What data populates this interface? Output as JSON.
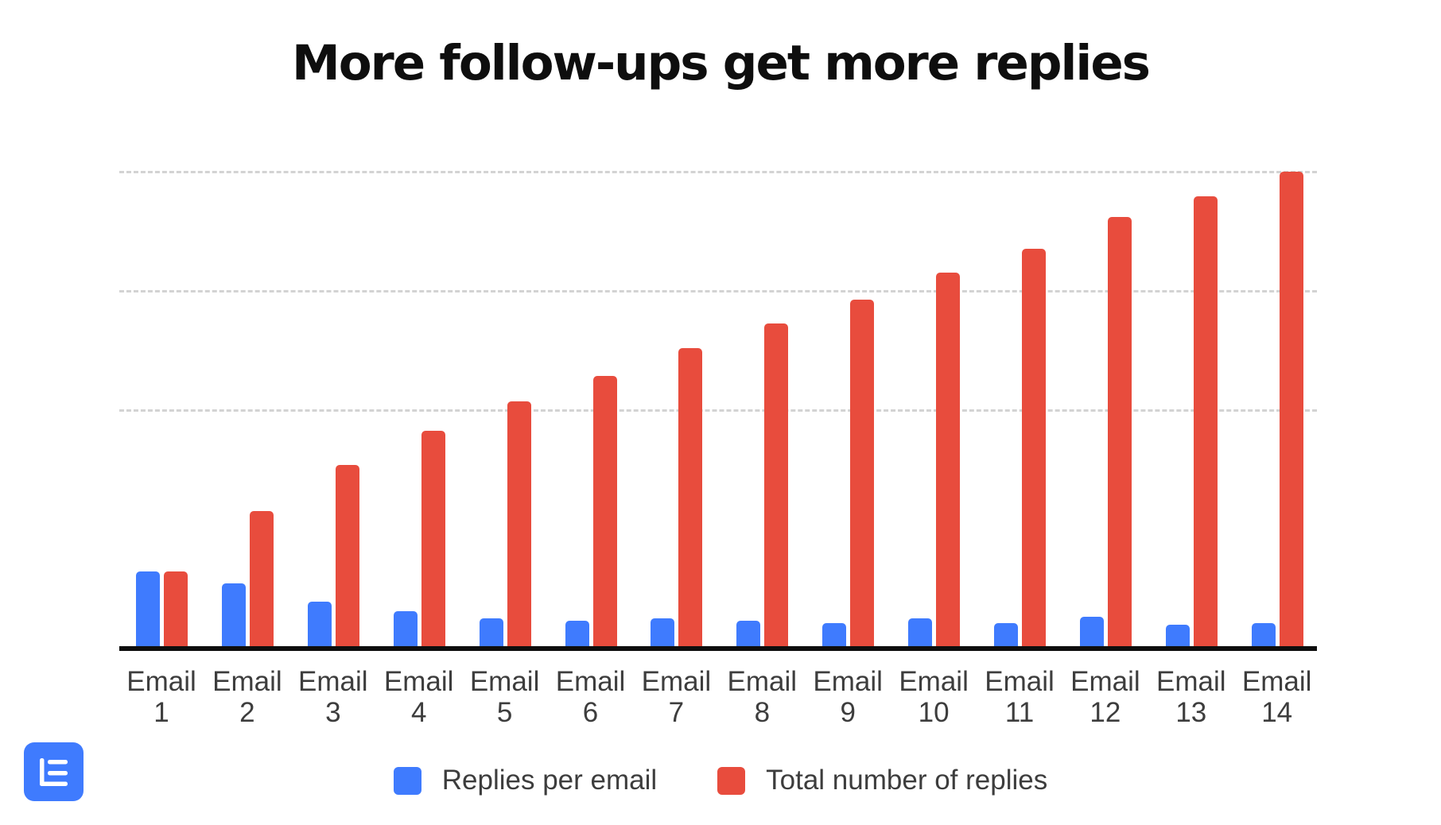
{
  "title": "More follow-ups get more replies",
  "colors": {
    "replies_per_email": "#3F7BFE",
    "total_replies": "#E84C3D",
    "logo_bg": "#3F7BFE"
  },
  "legend": [
    {
      "label": "Replies per email",
      "color": "#3F7BFE"
    },
    {
      "label": "Total number of replies",
      "color": "#E84C3D"
    }
  ],
  "x_labels": [
    {
      "line1": "Email",
      "line2": "1"
    },
    {
      "line1": "Email",
      "line2": "2"
    },
    {
      "line1": "Email",
      "line2": "3"
    },
    {
      "line1": "Email",
      "line2": "4"
    },
    {
      "line1": "Email",
      "line2": "5"
    },
    {
      "line1": "Email",
      "line2": "6"
    },
    {
      "line1": "Email",
      "line2": "7"
    },
    {
      "line1": "Email",
      "line2": "8"
    },
    {
      "line1": "Email",
      "line2": "9"
    },
    {
      "line1": "Email",
      "line2": "10"
    },
    {
      "line1": "Email",
      "line2": "11"
    },
    {
      "line1": "Email",
      "line2": "12"
    },
    {
      "line1": "Email",
      "line2": "13"
    },
    {
      "line1": "Email",
      "line2": "14"
    }
  ],
  "chart_data": {
    "type": "bar",
    "title": "More follow-ups get more replies",
    "xlabel": "",
    "ylabel": "",
    "y_units": "relative (top gridline = 100; no y-axis labels shown)",
    "ylim": [
      0,
      100
    ],
    "gridlines": [
      50,
      75,
      100
    ],
    "grid": true,
    "legend_position": "bottom",
    "categories": [
      "Email 1",
      "Email 2",
      "Email 3",
      "Email 4",
      "Email 5",
      "Email 6",
      "Email 7",
      "Email 8",
      "Email 9",
      "Email 10",
      "Email 11",
      "Email 12",
      "Email 13",
      "Email 14"
    ],
    "series": [
      {
        "name": "Replies per email",
        "color": "#3F7BFE",
        "values": [
          15.7,
          13.2,
          9.4,
          7.4,
          5.9,
          5.4,
          5.9,
          5.4,
          4.8,
          5.9,
          4.8,
          6.2,
          4.5,
          4.8
        ]
      },
      {
        "name": "Total number of replies",
        "color": "#E84C3D",
        "values": [
          15.7,
          28.4,
          38.1,
          45.3,
          51.5,
          56.9,
          62.7,
          67.9,
          72.9,
          78.6,
          83.6,
          90.3,
          94.6,
          99.8
        ]
      }
    ]
  }
}
